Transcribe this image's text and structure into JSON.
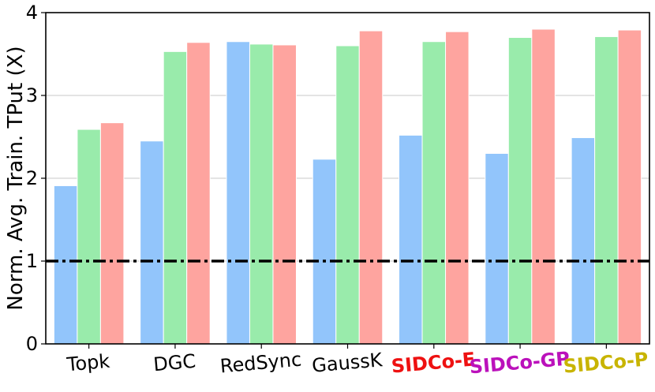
{
  "chart_data": {
    "type": "bar",
    "title": "",
    "xlabel": "",
    "ylabel": "Norm. Avg. Train. TPut (X)",
    "ylim": [
      0,
      4
    ],
    "yticks": [
      "0",
      "1",
      "2",
      "3",
      "4"
    ],
    "grid": "horizontal",
    "categories": [
      "Topk",
      "DGC",
      "RedSync",
      "GaussK",
      "SIDCo-E",
      "SIDCo-GP",
      "SIDCo-P"
    ],
    "category_styles": [
      {
        "color": "#000000",
        "bold": false
      },
      {
        "color": "#000000",
        "bold": false
      },
      {
        "color": "#000000",
        "bold": false
      },
      {
        "color": "#000000",
        "bold": false
      },
      {
        "color": "#ee1111",
        "bold": true
      },
      {
        "color": "#bb11bb",
        "bold": true
      },
      {
        "color": "#c8b400",
        "bold": true
      }
    ],
    "series": [
      {
        "color": "#92c5fb",
        "values": [
          1.91,
          2.45,
          3.65,
          2.23,
          2.52,
          2.3,
          2.49
        ]
      },
      {
        "color": "#99ebab",
        "values": [
          2.59,
          3.53,
          3.62,
          3.6,
          3.65,
          3.7,
          3.71
        ]
      },
      {
        "color": "#fea49f",
        "values": [
          2.67,
          3.64,
          3.61,
          3.78,
          3.77,
          3.8,
          3.79
        ]
      }
    ],
    "reference_line": {
      "y": 1.0,
      "style": "dash-dot",
      "color": "#000000"
    }
  }
}
